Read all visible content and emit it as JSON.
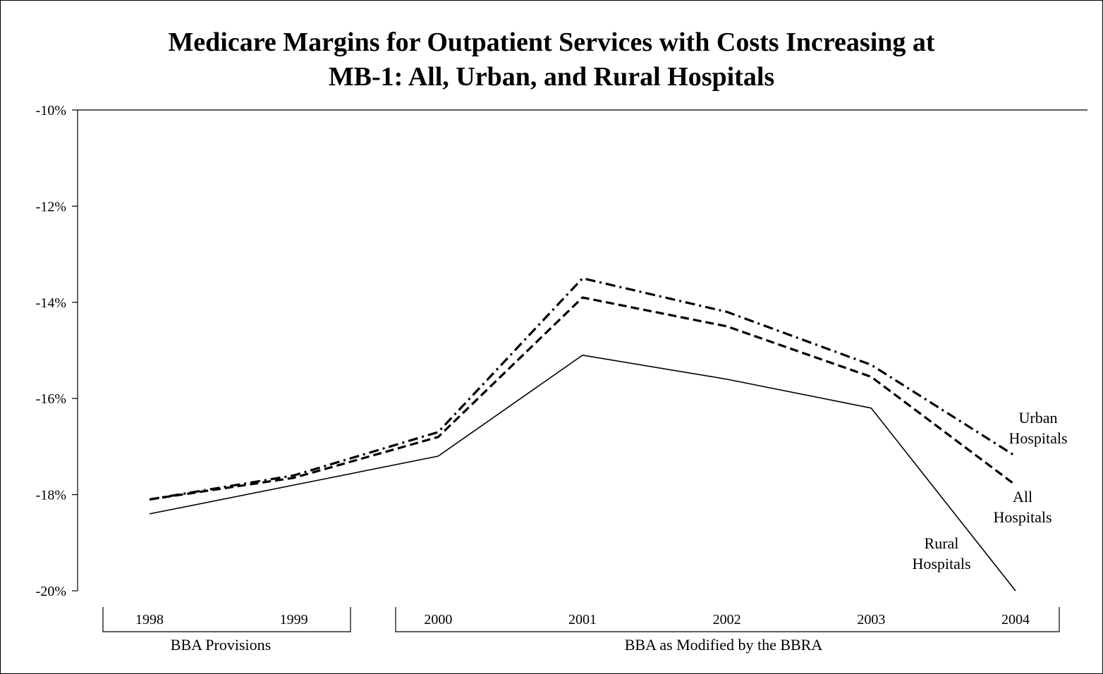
{
  "chart_data": {
    "type": "line",
    "title_lines": [
      "Medicare Margins for Outpatient Services with Costs Increasing at",
      "MB-1: All, Urban, and Rural Hospitals"
    ],
    "categories": [
      "1998",
      "1999",
      "2000",
      "2001",
      "2002",
      "2003",
      "2004"
    ],
    "y_ticks": [
      "-10%",
      "-12%",
      "-14%",
      "-16%",
      "-18%",
      "-20%"
    ],
    "ylim": [
      -20,
      -10
    ],
    "y_unit": "percent",
    "grid": false,
    "series": [
      {
        "name": "Urban Hospitals",
        "label_lines": [
          "Urban",
          "Hospitals"
        ],
        "style": "dash-dot",
        "color": "#000000",
        "values": [
          -18.1,
          -17.6,
          -16.7,
          -13.5,
          -14.2,
          -15.3,
          -17.2
        ]
      },
      {
        "name": "All Hospitals",
        "label_lines": [
          "All",
          "Hospitals"
        ],
        "style": "dashed",
        "color": "#000000",
        "values": [
          -18.1,
          -17.65,
          -16.8,
          -13.9,
          -14.5,
          -15.55,
          -17.8
        ]
      },
      {
        "name": "Rural Hospitals",
        "label_lines": [
          "Rural",
          "Hospitals"
        ],
        "style": "solid",
        "color": "#000000",
        "values": [
          -18.4,
          -17.8,
          -17.2,
          -15.1,
          -15.6,
          -16.2,
          -20.0
        ]
      }
    ],
    "category_groups": [
      {
        "label": "BBA Provisions",
        "categories": [
          "1998",
          "1999"
        ]
      },
      {
        "label": "BBA as Modified by the BBRA",
        "categories": [
          "2000",
          "2001",
          "2002",
          "2003",
          "2004"
        ]
      }
    ]
  }
}
